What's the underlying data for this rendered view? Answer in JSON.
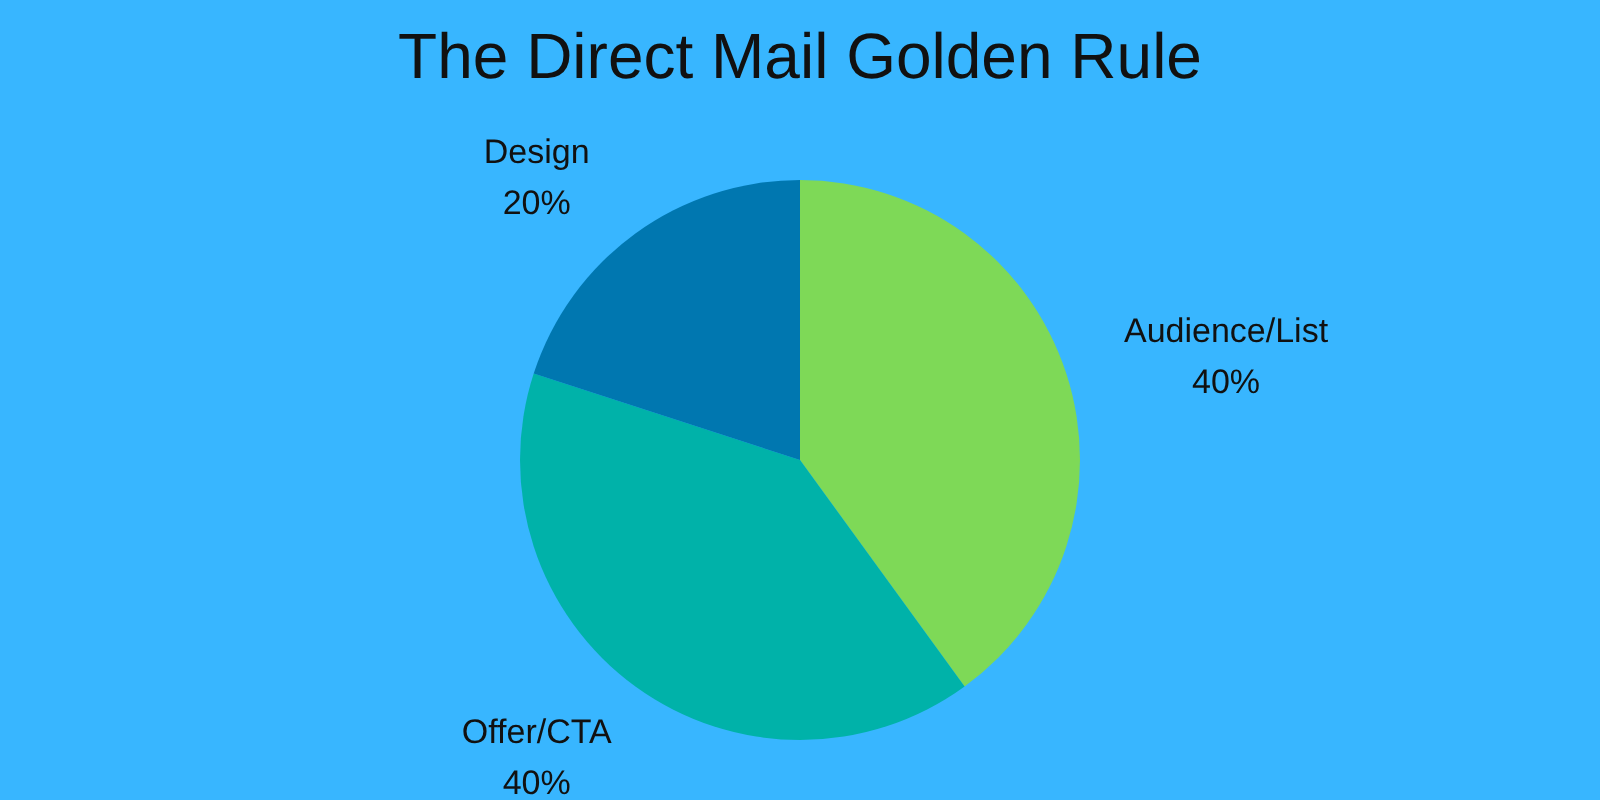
{
  "chart_data": {
    "type": "pie",
    "title": "The Direct Mail Golden Rule",
    "categories": [
      "Audience/List",
      "Offer/CTA",
      "Design"
    ],
    "values": [
      40,
      40,
      20
    ],
    "colors": [
      "#7ed957",
      "#00b2a9",
      "#0077b0"
    ],
    "value_labels": [
      "40%",
      "40%",
      "20%"
    ]
  }
}
